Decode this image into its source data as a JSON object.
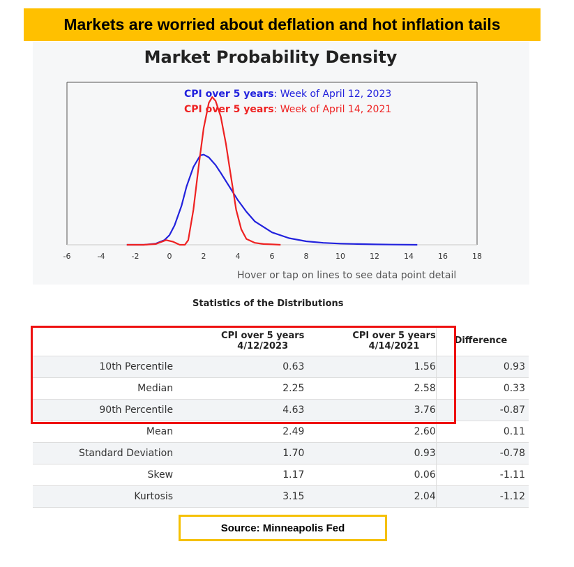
{
  "banner": {
    "text": "Markets are worried about deflation and hot inflation tails"
  },
  "chart_data": {
    "type": "line",
    "title": "Market Probability Density",
    "xlim": [
      -6,
      18
    ],
    "xticks": [
      -6,
      -4,
      -2,
      0,
      2,
      4,
      6,
      8,
      10,
      12,
      14,
      16,
      18
    ],
    "ylabel": "",
    "xlabel": "",
    "grid": false,
    "legend_position": "top",
    "series": [
      {
        "name_prefix": "CPI over 5 years",
        "name_suffix": ": Week of April 12, 2023",
        "color": "#2222dd",
        "x": [
          -2.5,
          -1.5,
          -0.8,
          -0.3,
          0,
          0.3,
          0.7,
          1.0,
          1.4,
          1.8,
          2.0,
          2.3,
          2.7,
          3.0,
          3.5,
          4.0,
          4.5,
          5.0,
          6.0,
          7.0,
          8.0,
          9.0,
          10.0,
          11.0,
          12.0,
          13.0,
          14.5
        ],
        "y": [
          0.0,
          0.0,
          0.003,
          0.012,
          0.025,
          0.05,
          0.1,
          0.15,
          0.2,
          0.23,
          0.232,
          0.225,
          0.205,
          0.185,
          0.15,
          0.115,
          0.085,
          0.06,
          0.032,
          0.017,
          0.009,
          0.005,
          0.003,
          0.002,
          0.001,
          0.0005,
          0.0
        ]
      },
      {
        "name_prefix": "CPI over 5 years",
        "name_suffix": ": Week of April 14, 2021",
        "color": "#ee2222",
        "x": [
          -2.5,
          -1.5,
          -0.8,
          -0.2,
          0.2,
          0.6,
          0.9,
          1.1,
          1.4,
          1.7,
          2.0,
          2.3,
          2.5,
          2.7,
          3.0,
          3.3,
          3.6,
          3.9,
          4.2,
          4.5,
          5.0,
          5.5,
          6.0,
          6.5
        ],
        "y": [
          0.0,
          0.0,
          0.002,
          0.012,
          0.008,
          0.0,
          0.0,
          0.012,
          0.09,
          0.2,
          0.3,
          0.365,
          0.38,
          0.37,
          0.33,
          0.26,
          0.175,
          0.09,
          0.04,
          0.015,
          0.005,
          0.002,
          0.001,
          0.0
        ]
      }
    ]
  },
  "hint": "Hover or tap on lines to see data point detail",
  "stats": {
    "title": "Statistics of the Distributions",
    "headers": {
      "a_line1": "CPI over 5 years",
      "a_line2": "4/12/2023",
      "b_line1": "CPI over 5 years",
      "b_line2": "4/14/2021",
      "diff": "Difference"
    },
    "rows": [
      {
        "label": "10th Percentile",
        "a": "0.63",
        "b": "1.56",
        "d": "0.93"
      },
      {
        "label": "Median",
        "a": "2.25",
        "b": "2.58",
        "d": "0.33"
      },
      {
        "label": "90th Percentile",
        "a": "4.63",
        "b": "3.76",
        "d": "-0.87"
      },
      {
        "label": "Mean",
        "a": "2.49",
        "b": "2.60",
        "d": "0.11"
      },
      {
        "label": "Standard Deviation",
        "a": "1.70",
        "b": "0.93",
        "d": "-0.78"
      },
      {
        "label": "Skew",
        "a": "1.17",
        "b": "0.06",
        "d": "-1.11"
      },
      {
        "label": "Kurtosis",
        "a": "3.15",
        "b": "2.04",
        "d": "-1.12"
      }
    ]
  },
  "source": {
    "text": "Source: Minneapolis Fed"
  },
  "colors": {
    "banner": "#ffc000",
    "highlight": "#ee1111",
    "source_border": "#f5c000"
  }
}
